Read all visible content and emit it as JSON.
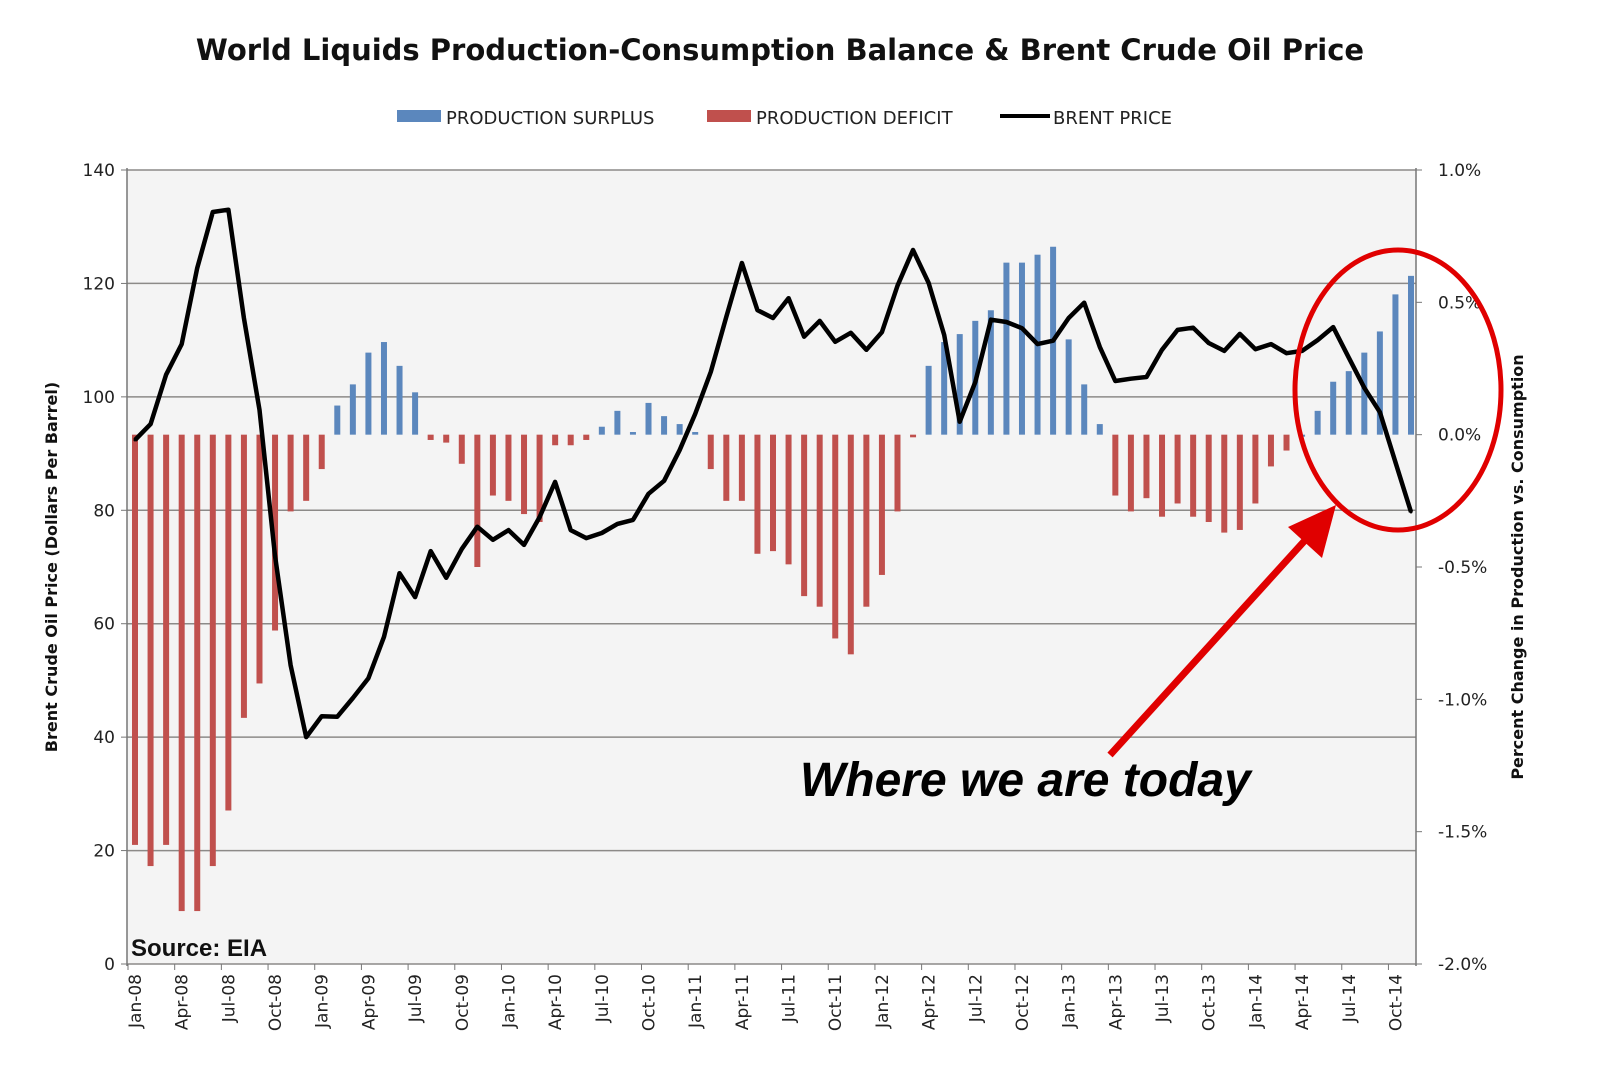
{
  "chart_data": {
    "type": "bar+line",
    "title": "World Liquids Production-Consumption Balance & Brent Crude Oil Price",
    "legend": [
      "PRODUCTION SURPLUS",
      "PRODUCTION DEFICIT",
      "BRENT PRICE"
    ],
    "legend_position": "top",
    "ylabel_left": "Brent Crude Oil Price (Dollars Per Barrel)",
    "ylabel_right": "Percent Change in Production vs. Consumption",
    "ylim_left": [
      0,
      140
    ],
    "ylim_right": [
      -2.0,
      1.0
    ],
    "yticks_left": [
      "0",
      "20",
      "40",
      "60",
      "80",
      "100",
      "120",
      "140"
    ],
    "yticks_right": [
      "-2.0%",
      "-1.5%",
      "-1.0%",
      "-0.5%",
      "0.0%",
      "0.5%",
      "1.0%"
    ],
    "grid": true,
    "xtick_labels": [
      "Jan-08",
      "Apr-08",
      "Jul-08",
      "Oct-08",
      "Jan-09",
      "Apr-09",
      "Jul-09",
      "Oct-09",
      "Jan-10",
      "Apr-10",
      "Jul-10",
      "Oct-10",
      "Jan-11",
      "Apr-11",
      "Jul-11",
      "Oct-11",
      "Jan-12",
      "Apr-12",
      "Jul-12",
      "Oct-12",
      "Jan-13",
      "Apr-13",
      "Jul-13",
      "Oct-13",
      "Jan-14",
      "Apr-14",
      "Jul-14",
      "Oct-14"
    ],
    "start_month": "Jan-08",
    "balance_pct": [
      -1.55,
      -1.63,
      -1.55,
      -1.8,
      -1.8,
      -1.63,
      -1.42,
      -1.07,
      -0.94,
      -0.74,
      -0.29,
      -0.25,
      -0.13,
      0.11,
      0.19,
      0.31,
      0.35,
      0.26,
      0.16,
      -0.02,
      -0.03,
      -0.11,
      -0.5,
      -0.23,
      -0.25,
      -0.3,
      -0.33,
      -0.04,
      -0.04,
      -0.02,
      0.03,
      0.09,
      0.01,
      0.12,
      0.07,
      0.04,
      0.01,
      -0.13,
      -0.25,
      -0.25,
      -0.45,
      -0.44,
      -0.49,
      -0.61,
      -0.65,
      -0.77,
      -0.83,
      -0.65,
      -0.53,
      -0.29,
      -0.01,
      0.26,
      0.35,
      0.38,
      0.43,
      0.47,
      0.65,
      0.65,
      0.68,
      0.71,
      0.36,
      0.19,
      0.04,
      -0.23,
      -0.29,
      -0.24,
      -0.31,
      -0.26,
      -0.31,
      -0.33,
      -0.37,
      -0.36,
      -0.26,
      -0.12,
      -0.06,
      0.0,
      0.09,
      0.2,
      0.24,
      0.31,
      0.39,
      0.53,
      0.6
    ],
    "brent_price": [
      92.4,
      95.2,
      103.9,
      109.3,
      122.7,
      132.6,
      133.0,
      113.9,
      97.7,
      72.0,
      52.7,
      40.0,
      43.7,
      43.6,
      46.9,
      50.4,
      57.7,
      68.9,
      64.7,
      72.8,
      68.1,
      73.2,
      77.1,
      74.8,
      76.5,
      73.9,
      78.8,
      85.0,
      76.5,
      75.1,
      76.0,
      77.6,
      78.3,
      82.9,
      85.2,
      90.6,
      97.0,
      104.4,
      114.1,
      123.6,
      115.3,
      113.9,
      117.4,
      110.6,
      113.4,
      109.7,
      111.3,
      108.3,
      111.4,
      119.6,
      125.9,
      120.1,
      110.9,
      95.6,
      102.6,
      113.6,
      113.2,
      112.1,
      109.3,
      109.9,
      113.9,
      116.6,
      108.8,
      102.8,
      103.2,
      103.5,
      108.3,
      111.8,
      112.2,
      109.5,
      108.1,
      111.1,
      108.4,
      109.3,
      107.7,
      108.1,
      110.0,
      112.3,
      106.9,
      101.6,
      97.3,
      88.5,
      79.7
    ],
    "annotation": "Where we are today",
    "source": "Source:  EIA",
    "colors": {
      "surplus": "#5b87bd",
      "deficit": "#c0504d",
      "price": "#000000",
      "highlight": "#e00000",
      "plot_bg": "#f4f4f4",
      "grid": "#8c8a88"
    }
  }
}
